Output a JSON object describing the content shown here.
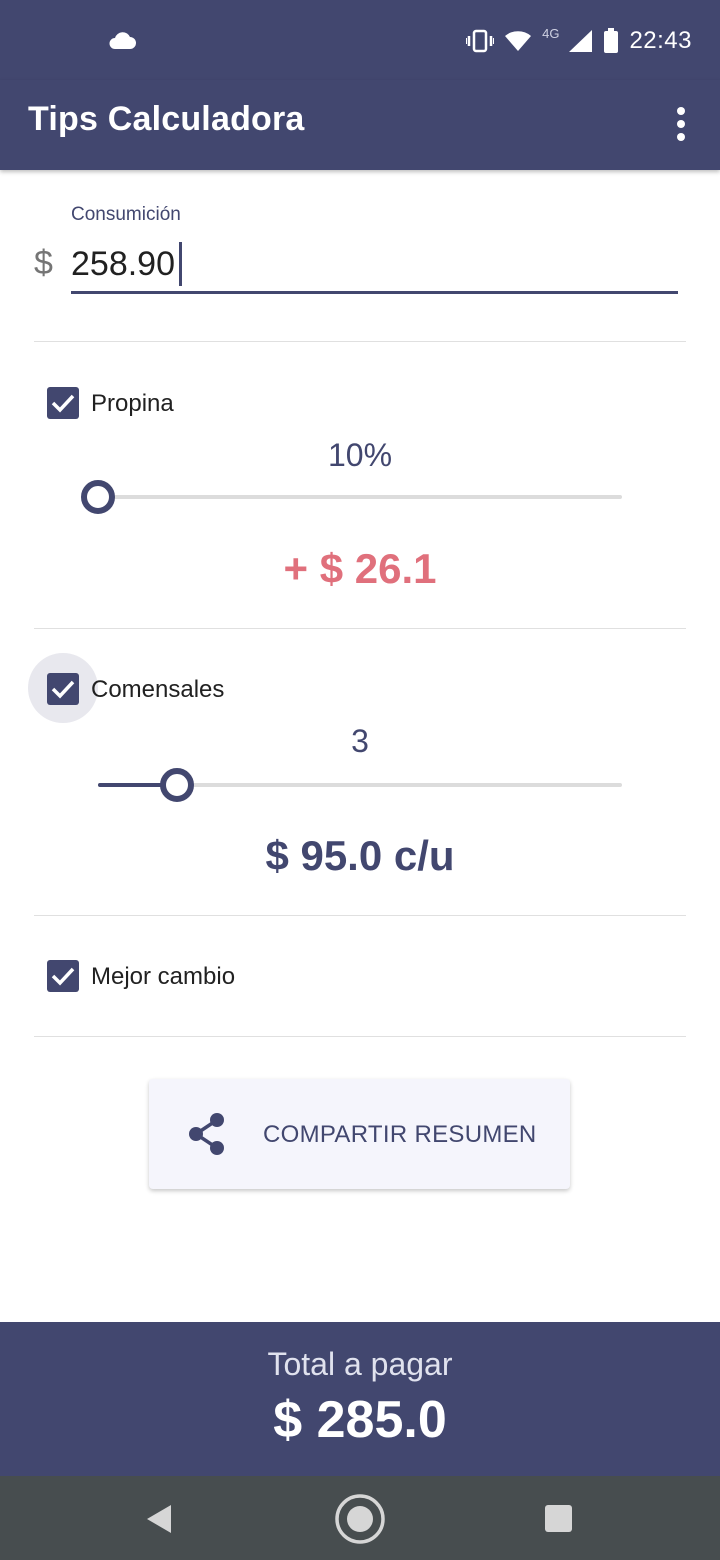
{
  "status_bar": {
    "time": "22:43",
    "network_label": "4G",
    "icons": [
      "cloud-icon",
      "vibrate-icon",
      "wifi-icon",
      "signal-icon",
      "battery-icon"
    ]
  },
  "app_bar": {
    "title": "Tips Calculadora",
    "menu_icon": "overflow-menu-icon"
  },
  "consumption": {
    "label": "Consumición",
    "currency": "$",
    "value": "258.90"
  },
  "tip": {
    "label": "Propina",
    "checked": true,
    "percent_text": "10%",
    "slider_fraction": 0.0,
    "amount_text": "+ $ 26.1"
  },
  "diners": {
    "label": "Comensales",
    "checked": true,
    "count_text": "3",
    "slider_fraction": 0.15,
    "per_person_text": "$ 95.0 c/u"
  },
  "rounding": {
    "label": "Mejor cambio",
    "checked": true
  },
  "share_button": {
    "label": "COMPARTIR RESUMEN",
    "icon": "share-icon"
  },
  "total": {
    "label": "Total a pagar",
    "value": "$ 285.0"
  },
  "colors": {
    "primary": "#42476f",
    "tip_accent": "#e0707c"
  }
}
